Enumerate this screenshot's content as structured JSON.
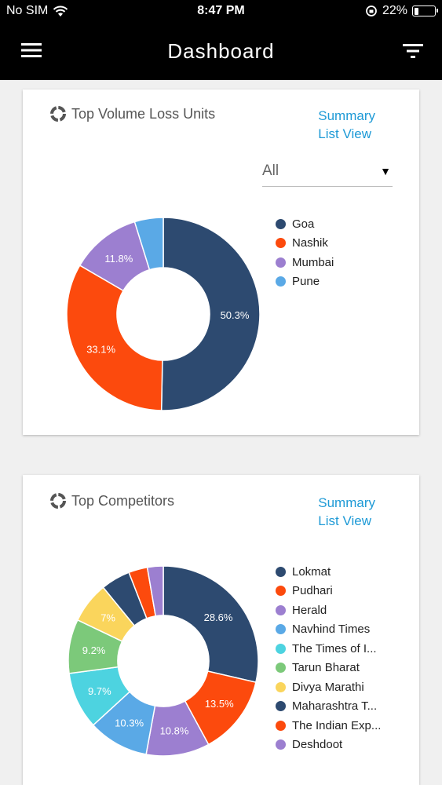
{
  "status_bar": {
    "carrier": "No SIM",
    "time": "8:47 PM",
    "battery": "22%",
    "battery_level": 0.22
  },
  "app_bar": {
    "title": "Dashboard",
    "menu_icon": "hamburger-menu-icon",
    "filter_icon": "filter-icon"
  },
  "cards": [
    {
      "title": "Top Volume Loss Units",
      "link_line1": "Summary",
      "link_line2": "List View",
      "dropdown_value": "All",
      "chart_data": {
        "type": "pie",
        "categories": [
          "Goa",
          "Nashik",
          "Mumbai",
          "Pune"
        ],
        "values": [
          50.3,
          33.1,
          11.8,
          4.8
        ],
        "labels": [
          "50.3%",
          "33.1%",
          "11.8%",
          ""
        ],
        "colors": [
          "#2d4a70",
          "#fc4a0d",
          "#9c7fd0",
          "#5aa9e6"
        ]
      }
    },
    {
      "title": "Top Competitors",
      "link_line1": "Summary",
      "link_line2": "List View",
      "chart_data": {
        "type": "pie",
        "categories": [
          "Lokmat",
          "Pudhari",
          "Herald",
          "Navhind Times",
          "The Times of I...",
          "Tarun Bharat",
          "Divya Marathi",
          "Maharashtra T...",
          "The Indian Exp...",
          "Deshdoot"
        ],
        "values": [
          28.6,
          13.5,
          10.8,
          10.3,
          9.7,
          9.2,
          7,
          5,
          3.2,
          2.7
        ],
        "labels": [
          "28.6%",
          "13.5%",
          "10.8%",
          "10.3%",
          "9.7%",
          "9.2%",
          "7%",
          "",
          "",
          ""
        ],
        "colors": [
          "#2d4a70",
          "#fc4a0d",
          "#9c7fd0",
          "#5aa9e6",
          "#4dd3e0",
          "#7cc97a",
          "#fad55c",
          "#2d4a70",
          "#fc4a0d",
          "#9c7fd0"
        ]
      }
    }
  ]
}
